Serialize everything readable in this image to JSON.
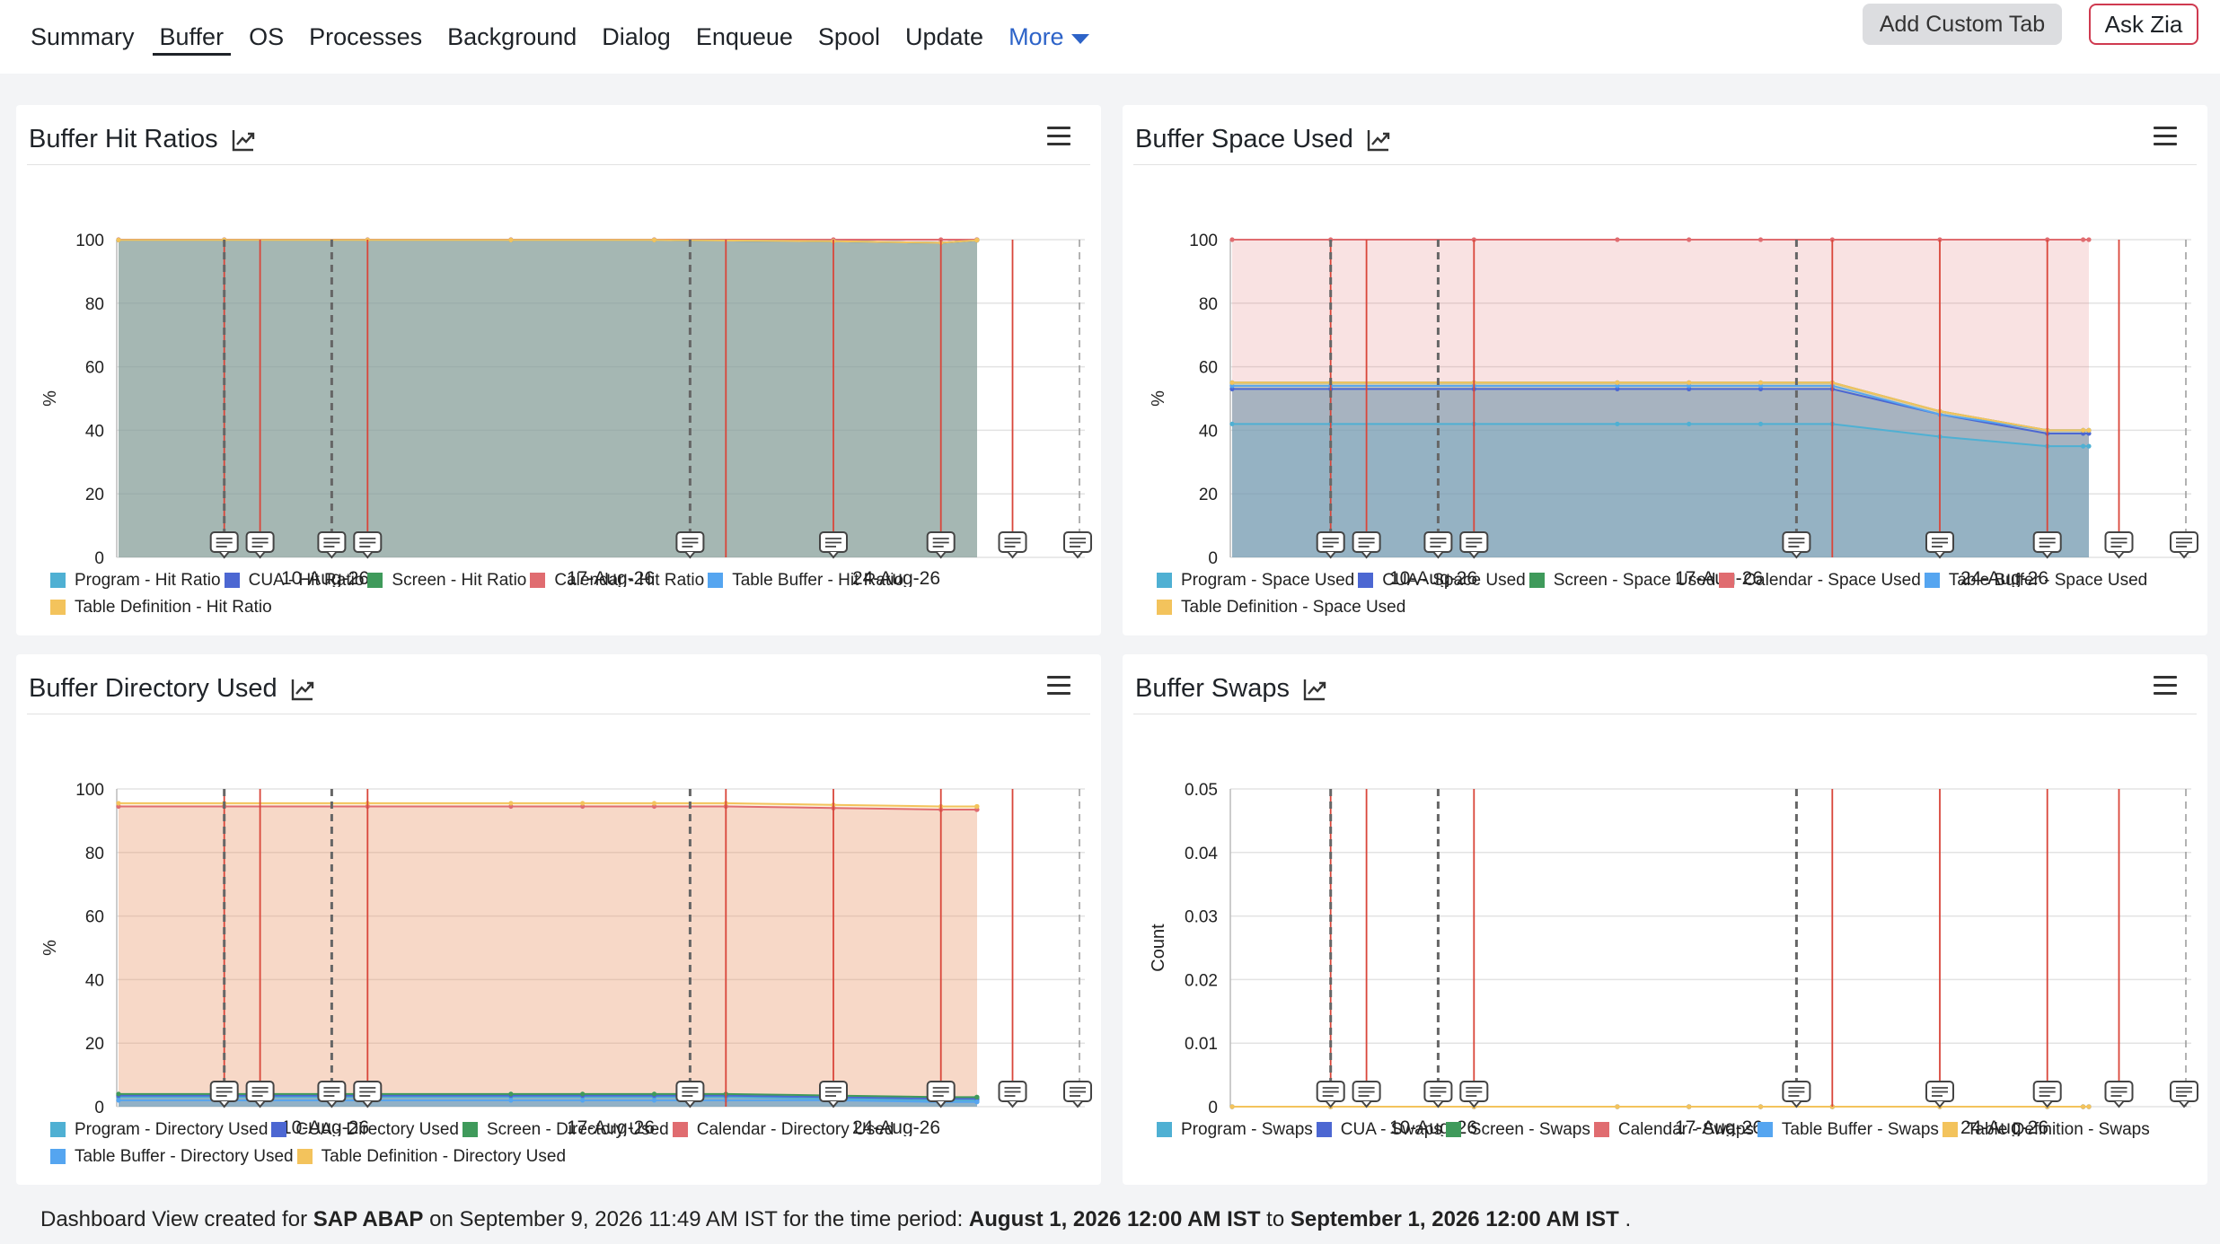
{
  "tabs": [
    "Summary",
    "Buffer",
    "OS",
    "Processes",
    "Background",
    "Dialog",
    "Enqueue",
    "Spool",
    "Update"
  ],
  "active_tab": "Buffer",
  "more_label": "More",
  "add_custom_tab": "Add Custom Tab",
  "ask_zia": "Ask Zia",
  "footer": {
    "prefix": "Dashboard View created for",
    "system": "SAP ABAP",
    "mid": "on September 9, 2026 11:49 AM IST for the time period:",
    "from": "August 1, 2026 12:00 AM IST",
    "to_word": "to",
    "to": "September 1, 2026 12:00 AM IST",
    "end": "."
  },
  "colors": {
    "program": "#4fb0d3",
    "cua": "#4c67d2",
    "screen": "#3f9a5b",
    "calendar": "#e06c70",
    "table_buffer": "#55a5f0",
    "table_definition": "#f3c35c",
    "event_red": "#d9463a",
    "event_gray": "#666666"
  },
  "events": {
    "red_lines": [
      "Aug-4",
      "Aug-5",
      "Aug-8",
      "Aug-18",
      "Aug-21",
      "Aug-24",
      "Aug-26"
    ],
    "dashed_lines": [
      "Aug-4",
      "Aug-7",
      "Aug-17"
    ],
    "dashed_end_line": "Sep-1",
    "markers": [
      "Aug-4",
      "Aug-5",
      "Aug-7",
      "Aug-8",
      "Aug-17",
      "Aug-21",
      "Aug-24",
      "Aug-26",
      "Sep-1"
    ]
  },
  "charts": [
    {
      "title": "Buffer Hit Ratios",
      "ylabel": "%",
      "legend": [
        "Program - Hit Ratio",
        "CUA - Hit Ratio",
        "Screen - Hit Ratio",
        "Calendar - Hit Ratio",
        "Table Buffer - Hit Ratio",
        "Table Definition - Hit Ratio"
      ]
    },
    {
      "title": "Buffer Space Used",
      "ylabel": "%",
      "legend": [
        "Program - Space Used",
        "CUA - Space Used",
        "Screen - Space Used",
        "Calendar - Space Used",
        "Table Buffer - Space Used",
        "Table Definition - Space Used"
      ]
    },
    {
      "title": "Buffer Directory Used",
      "ylabel": "%",
      "legend": [
        "Program - Directory Used",
        "CUA - Directory Used",
        "Screen - Directory Used",
        "Calendar - Directory Used",
        "Table Buffer - Directory Used",
        "Table Definition - Directory Used"
      ]
    },
    {
      "title": "Buffer Swaps",
      "ylabel": "Count",
      "legend": [
        "Program - Swaps",
        "CUA - Swaps",
        "Screen - Swaps",
        "Calendar - Swaps",
        "Table Buffer - Swaps",
        "Table Definition - Swaps"
      ]
    }
  ],
  "chart_data": [
    {
      "type": "area",
      "title": "Buffer Hit Ratios",
      "ylabel": "%",
      "ylim": [
        0,
        100
      ],
      "yticks": [
        "0",
        "20",
        "40",
        "60",
        "80",
        "100"
      ],
      "xticks": [
        "10-Aug-26",
        "17-Aug-26",
        "24-Aug-26"
      ],
      "x": [
        "Aug-1",
        "Aug-4",
        "Aug-8",
        "Aug-12",
        "Aug-16",
        "Aug-21",
        "Aug-24",
        "Aug-25",
        "Aug-26"
      ],
      "series": [
        {
          "name": "Program - Hit Ratio",
          "values": [
            99.9,
            99.9,
            99.9,
            99.9,
            99.9,
            99.5,
            99.0,
            99.8,
            99.9
          ]
        },
        {
          "name": "CUA - Hit Ratio",
          "values": [
            99.9,
            99.9,
            99.9,
            99.9,
            99.9,
            99.5,
            99.0,
            99.8,
            99.9
          ]
        },
        {
          "name": "Screen - Hit Ratio",
          "values": [
            99.9,
            99.9,
            99.9,
            99.9,
            99.9,
            99.5,
            99.0,
            99.8,
            99.9
          ]
        },
        {
          "name": "Calendar - Hit Ratio",
          "values": [
            100,
            100,
            100,
            100,
            100,
            100,
            100,
            100,
            100
          ]
        },
        {
          "name": "Table Buffer - Hit Ratio",
          "values": [
            99.9,
            99.9,
            99.9,
            99.9,
            99.9,
            99.5,
            99.0,
            99.8,
            99.9
          ]
        },
        {
          "name": "Table Definition - Hit Ratio",
          "values": [
            99.9,
            99.9,
            99.9,
            99.9,
            99.9,
            99.5,
            99.0,
            99.8,
            99.9
          ]
        }
      ]
    },
    {
      "type": "area",
      "title": "Buffer Space Used",
      "ylabel": "%",
      "ylim": [
        0,
        100
      ],
      "yticks": [
        "0",
        "20",
        "40",
        "60",
        "80",
        "100"
      ],
      "xticks": [
        "10-Aug-26",
        "17-Aug-26",
        "24-Aug-26"
      ],
      "x": [
        "Aug-1",
        "Aug-4",
        "Aug-8",
        "Aug-12",
        "Aug-16",
        "Aug-14",
        "Aug-18",
        "Aug-21",
        "Aug-24",
        "Aug-25",
        "Aug-26"
      ],
      "series": [
        {
          "name": "Program - Space Used",
          "values": [
            42,
            42,
            42,
            42,
            42,
            42,
            42,
            38,
            35,
            35,
            35
          ]
        },
        {
          "name": "CUA - Space Used",
          "values": [
            53,
            53,
            53,
            53,
            53,
            53,
            53,
            45,
            39,
            39,
            39
          ]
        },
        {
          "name": "Screen - Space Used",
          "values": [
            55,
            55,
            55,
            55,
            55,
            55,
            55,
            46,
            40,
            40,
            40
          ]
        },
        {
          "name": "Calendar - Space Used",
          "values": [
            100,
            100,
            100,
            100,
            100,
            100,
            100,
            100,
            100,
            100,
            100
          ]
        },
        {
          "name": "Table Buffer - Space Used",
          "values": [
            54,
            54,
            54,
            54,
            54,
            54,
            54,
            45,
            40,
            40,
            40
          ]
        },
        {
          "name": "Table Definition - Space Used",
          "values": [
            55,
            55,
            55,
            55,
            55,
            55,
            55,
            46,
            40,
            40,
            40
          ]
        }
      ]
    },
    {
      "type": "area",
      "title": "Buffer Directory Used",
      "ylabel": "%",
      "ylim": [
        0,
        100
      ],
      "yticks": [
        "0",
        "20",
        "40",
        "60",
        "80",
        "100"
      ],
      "xticks": [
        "10-Aug-26",
        "17-Aug-26",
        "24-Aug-26"
      ],
      "x": [
        "Aug-1",
        "Aug-4",
        "Aug-8",
        "Aug-12",
        "Aug-16",
        "Aug-14",
        "Aug-18",
        "Aug-21",
        "Aug-24",
        "Aug-25",
        "Aug-26"
      ],
      "series": [
        {
          "name": "Program - Directory Used",
          "values": [
            3,
            3,
            3,
            3,
            3,
            3,
            3,
            2.5,
            2,
            2,
            2
          ]
        },
        {
          "name": "CUA - Directory Used",
          "values": [
            3.5,
            3.5,
            3.5,
            3.5,
            3.5,
            3.5,
            3.5,
            3,
            2.5,
            2.5,
            2.5
          ]
        },
        {
          "name": "Screen - Directory Used",
          "values": [
            4,
            4,
            4,
            4,
            4,
            4,
            4,
            3.5,
            3,
            3,
            3
          ]
        },
        {
          "name": "Calendar - Directory Used",
          "values": [
            94.5,
            94.5,
            94.5,
            94.5,
            94.5,
            94.5,
            94.5,
            94,
            93.5,
            93.5,
            93.5
          ]
        },
        {
          "name": "Table Buffer - Directory Used",
          "values": [
            2,
            2,
            2,
            2,
            2,
            2,
            2,
            2,
            1.5,
            1.5,
            1.5
          ]
        },
        {
          "name": "Table Definition - Directory Used",
          "values": [
            95.5,
            95.5,
            95.5,
            95.5,
            95.5,
            95.5,
            95.5,
            95,
            94.5,
            94.5,
            94.5
          ]
        }
      ]
    },
    {
      "type": "line",
      "title": "Buffer Swaps",
      "ylabel": "Count",
      "ylim": [
        0,
        0.05
      ],
      "yticks": [
        "0",
        "0.01",
        "0.02",
        "0.03",
        "0.04",
        "0.05"
      ],
      "xticks": [
        "10-Aug-26",
        "17-Aug-26",
        "24-Aug-26"
      ],
      "x": [
        "Aug-1",
        "Aug-4",
        "Aug-8",
        "Aug-12",
        "Aug-16",
        "Aug-14",
        "Aug-18",
        "Aug-21",
        "Aug-24",
        "Aug-25",
        "Aug-26"
      ],
      "series": [
        {
          "name": "Program - Swaps",
          "values": [
            0,
            0,
            0,
            0,
            0,
            0,
            0,
            0,
            0,
            0,
            0
          ]
        },
        {
          "name": "CUA - Swaps",
          "values": [
            0,
            0,
            0,
            0,
            0,
            0,
            0,
            0,
            0,
            0,
            0
          ]
        },
        {
          "name": "Screen - Swaps",
          "values": [
            0,
            0,
            0,
            0,
            0,
            0,
            0,
            0,
            0,
            0,
            0
          ]
        },
        {
          "name": "Calendar - Swaps",
          "values": [
            0,
            0,
            0,
            0,
            0,
            0,
            0,
            0,
            0,
            0,
            0
          ]
        },
        {
          "name": "Table Buffer - Swaps",
          "values": [
            0,
            0,
            0,
            0,
            0,
            0,
            0,
            0,
            0,
            0,
            0
          ]
        },
        {
          "name": "Table Definition - Swaps",
          "values": [
            0,
            0,
            0,
            0,
            0,
            0,
            0,
            0,
            0,
            0,
            0
          ]
        }
      ]
    }
  ]
}
